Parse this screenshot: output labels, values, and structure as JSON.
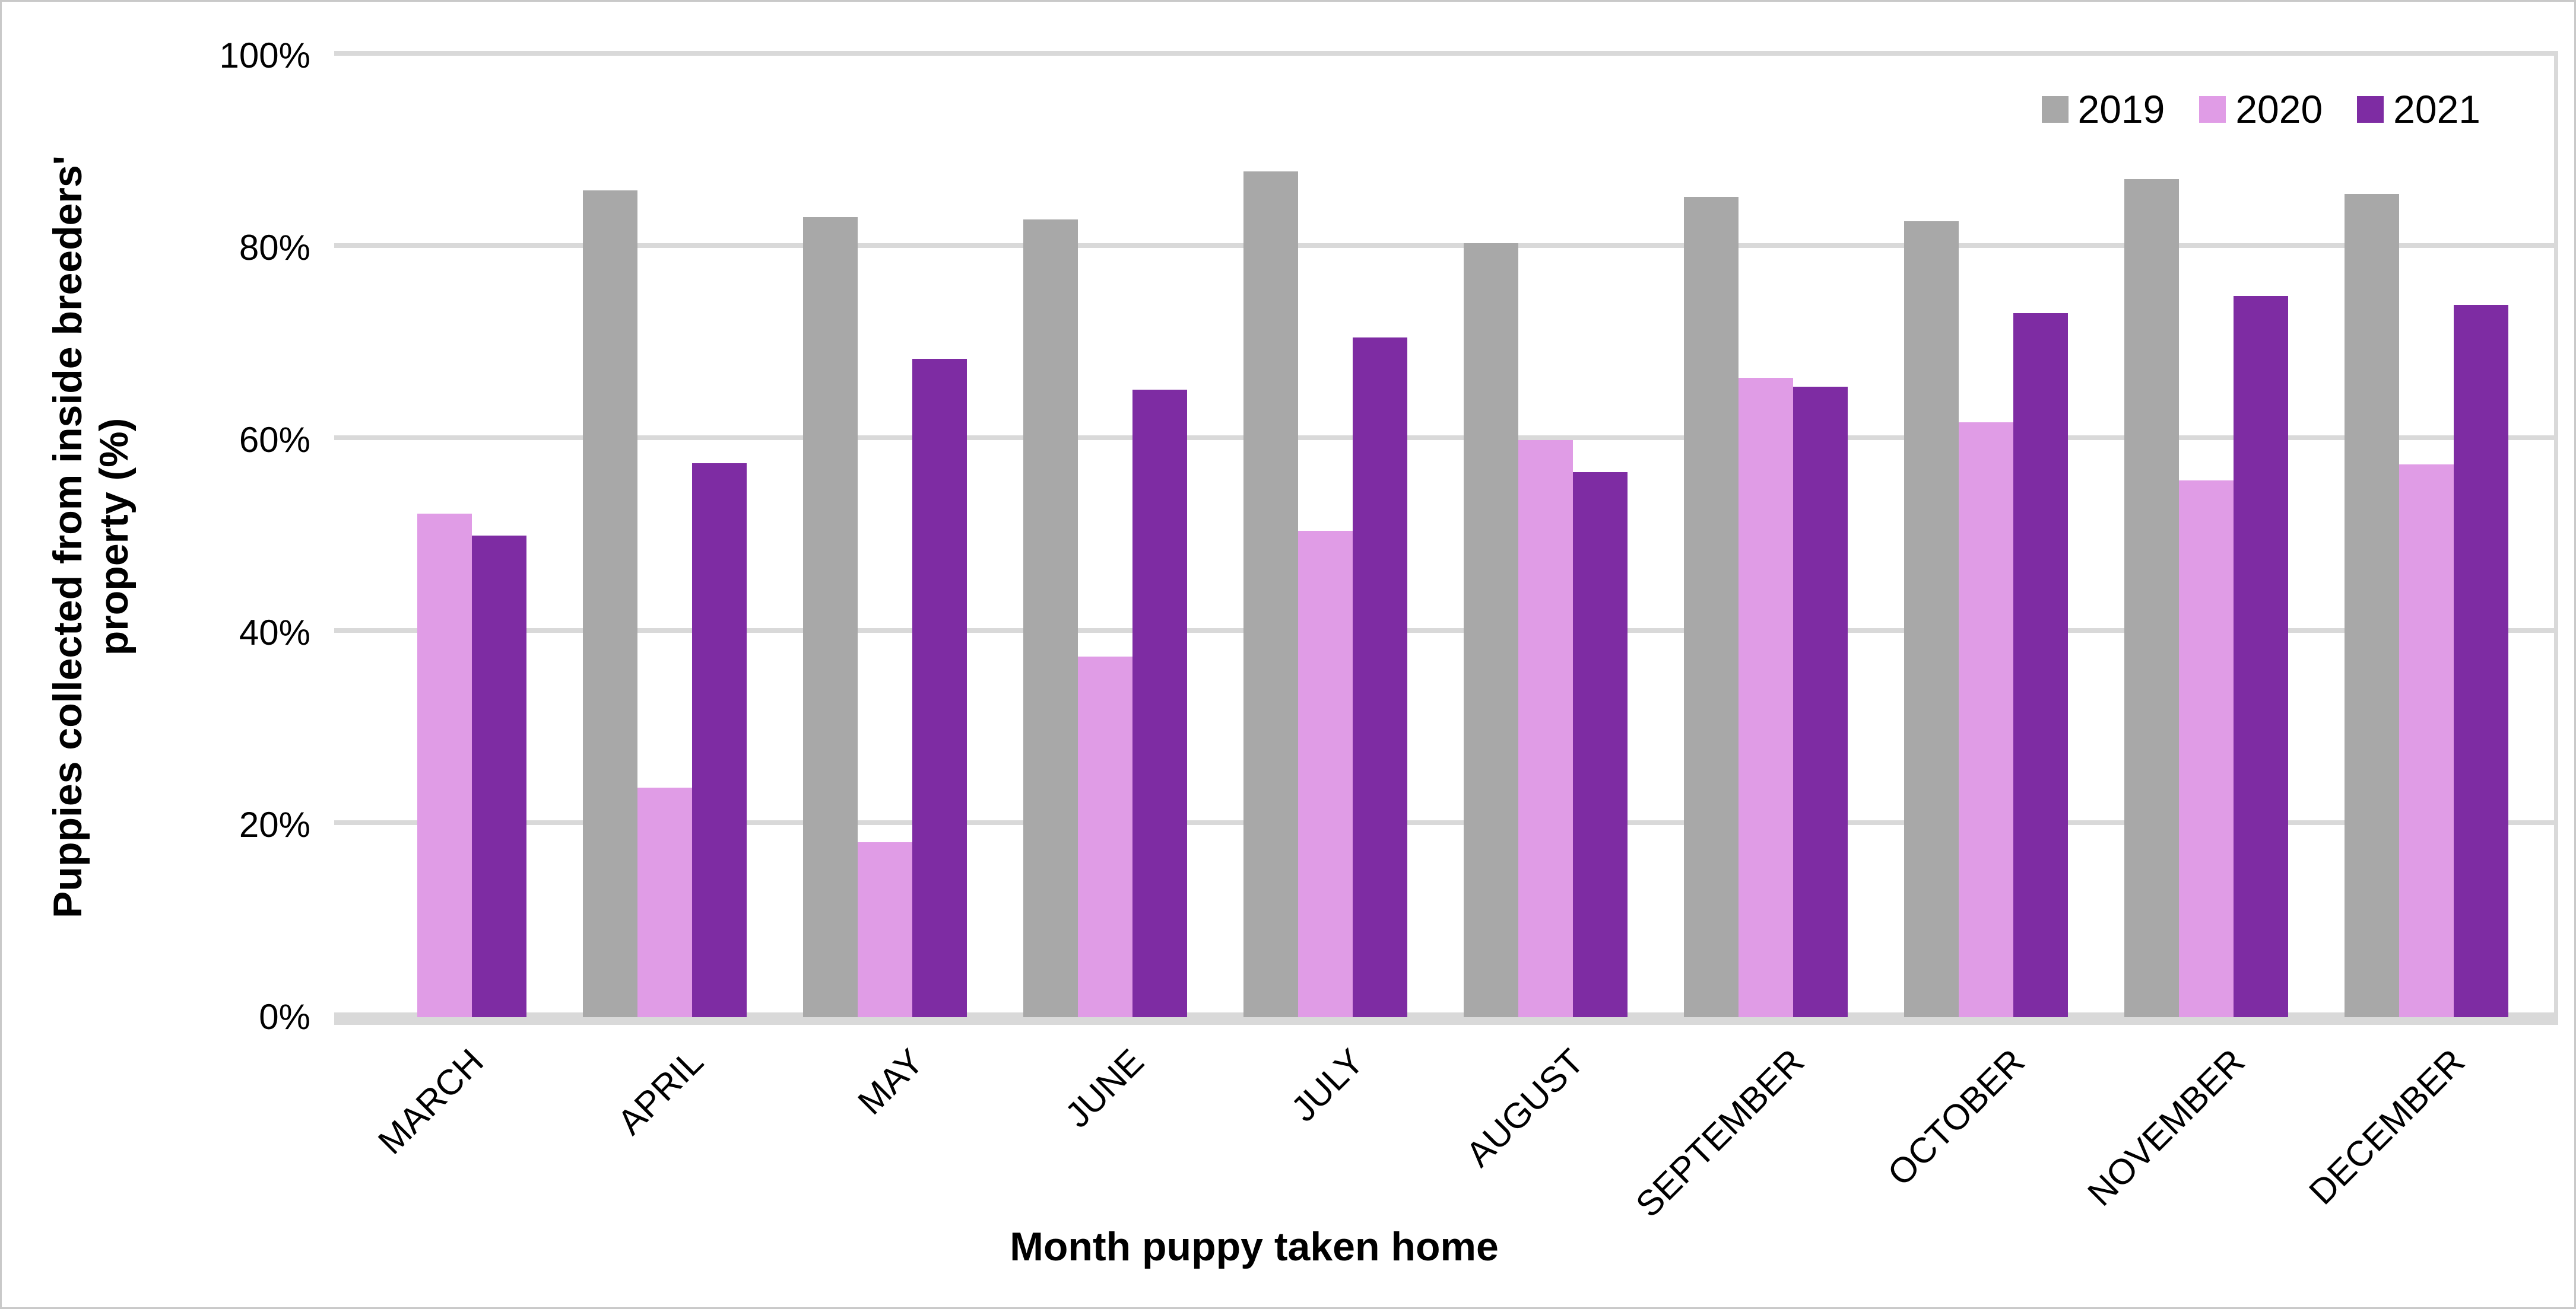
{
  "chart": {
    "y_axis_title_line1": "Puppies collected from inside breeders'",
    "y_axis_title_line2": "property (%)",
    "x_axis_title": "Month puppy taken home"
  },
  "chart_data": {
    "type": "bar",
    "title": "",
    "xlabel": "Month puppy taken home",
    "ylabel": "Puppies collected from inside breeders' property (%)",
    "categories": [
      "MARCH",
      "APRIL",
      "MAY",
      "JUNE",
      "JULY",
      "AUGUST",
      "SEPTEMBER",
      "OCTOBER",
      "NOVEMBER",
      "DECEMBER"
    ],
    "series": [
      {
        "name": "2019",
        "color": "#a8a8a8",
        "values": [
          null,
          86.0,
          83.2,
          83.0,
          88.0,
          80.5,
          85.3,
          82.8,
          87.2,
          85.6
        ]
      },
      {
        "name": "2020",
        "color": "#e09ce6",
        "values": [
          52.4,
          23.9,
          18.2,
          37.5,
          50.6,
          60.0,
          66.5,
          61.9,
          55.8,
          57.5
        ]
      },
      {
        "name": "2021",
        "color": "#7e2ca3",
        "values": [
          50.1,
          57.6,
          68.5,
          65.3,
          70.7,
          56.7,
          65.6,
          73.2,
          75.0,
          74.1
        ]
      }
    ],
    "ylim": [
      0,
      100
    ],
    "y_step": 20,
    "y_tick_suffix": "%",
    "grid": true,
    "legend_position": "top-right"
  },
  "colors": {
    "gridline": "#d9d9d9",
    "axis_line": "#d9d9d9",
    "text": "#000000",
    "border": "#c9c9c9",
    "background": "#ffffff"
  }
}
